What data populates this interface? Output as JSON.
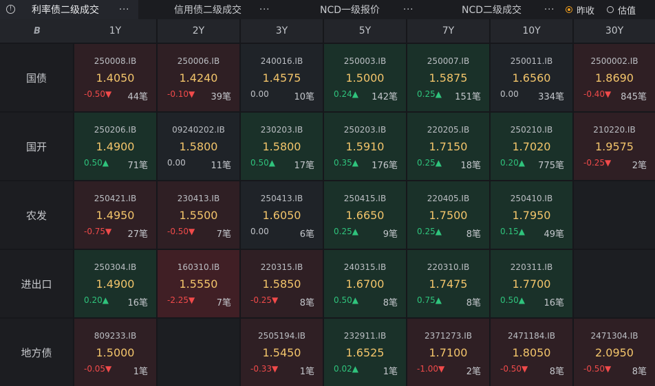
{
  "tabs": [
    {
      "label": "利率债二级成交",
      "more": "···"
    },
    {
      "label": "信用债二级成交",
      "more": "···"
    },
    {
      "label": "NCD一级报价",
      "more": "···"
    },
    {
      "label": "NCD二级成交",
      "more": "···"
    }
  ],
  "radios": [
    {
      "label": "昨收",
      "selected": true
    },
    {
      "label": "估值",
      "selected": false
    }
  ],
  "columns": [
    "1Y",
    "2Y",
    "3Y",
    "5Y",
    "7Y",
    "10Y",
    "30Y"
  ],
  "logo_text": "B",
  "rows": [
    {
      "label": "国债",
      "cells": [
        {
          "code": "250008.IB",
          "yield": "1.4050",
          "change": "-0.50▼",
          "count": "44笔",
          "tone": "red",
          "dir": "down"
        },
        {
          "code": "250006.IB",
          "yield": "1.4240",
          "change": "-0.10▼",
          "count": "39笔",
          "tone": "red",
          "dir": "down"
        },
        {
          "code": "240016.IB",
          "yield": "1.4575",
          "change": "0.00",
          "count": "10笔",
          "tone": "neutral",
          "dir": "flat"
        },
        {
          "code": "250003.IB",
          "yield": "1.5000",
          "change": "0.24▲",
          "count": "142笔",
          "tone": "green",
          "dir": "up"
        },
        {
          "code": "250007.IB",
          "yield": "1.5875",
          "change": "0.25▲",
          "count": "151笔",
          "tone": "green",
          "dir": "up"
        },
        {
          "code": "250011.IB",
          "yield": "1.6560",
          "change": "0.00",
          "count": "334笔",
          "tone": "neutral",
          "dir": "flat"
        },
        {
          "code": "2500002.IB",
          "yield": "1.8690",
          "change": "-0.40▼",
          "count": "845笔",
          "tone": "red",
          "dir": "down"
        }
      ]
    },
    {
      "label": "国开",
      "cells": [
        {
          "code": "250206.IB",
          "yield": "1.4900",
          "change": "0.50▲",
          "count": "71笔",
          "tone": "green",
          "dir": "up"
        },
        {
          "code": "09240202.IB",
          "yield": "1.5800",
          "change": "0.00",
          "count": "11笔",
          "tone": "neutral",
          "dir": "flat"
        },
        {
          "code": "230203.IB",
          "yield": "1.5800",
          "change": "0.50▲",
          "count": "17笔",
          "tone": "green",
          "dir": "up"
        },
        {
          "code": "250203.IB",
          "yield": "1.5910",
          "change": "0.35▲",
          "count": "176笔",
          "tone": "green",
          "dir": "up"
        },
        {
          "code": "220205.IB",
          "yield": "1.7150",
          "change": "0.25▲",
          "count": "18笔",
          "tone": "green",
          "dir": "up"
        },
        {
          "code": "250210.IB",
          "yield": "1.7020",
          "change": "0.20▲",
          "count": "775笔",
          "tone": "green",
          "dir": "up"
        },
        {
          "code": "210220.IB",
          "yield": "1.9575",
          "change": "-0.25▼",
          "count": "2笔",
          "tone": "red",
          "dir": "down"
        }
      ]
    },
    {
      "label": "农发",
      "cells": [
        {
          "code": "250421.IB",
          "yield": "1.4950",
          "change": "-0.75▼",
          "count": "27笔",
          "tone": "red",
          "dir": "down"
        },
        {
          "code": "230413.IB",
          "yield": "1.5500",
          "change": "-0.50▼",
          "count": "7笔",
          "tone": "red",
          "dir": "down"
        },
        {
          "code": "250413.IB",
          "yield": "1.6050",
          "change": "0.00",
          "count": "6笔",
          "tone": "neutral",
          "dir": "flat"
        },
        {
          "code": "250415.IB",
          "yield": "1.6650",
          "change": "0.25▲",
          "count": "9笔",
          "tone": "green",
          "dir": "up"
        },
        {
          "code": "220405.IB",
          "yield": "1.7500",
          "change": "0.25▲",
          "count": "8笔",
          "tone": "green",
          "dir": "up"
        },
        {
          "code": "250410.IB",
          "yield": "1.7950",
          "change": "0.15▲",
          "count": "49笔",
          "tone": "green",
          "dir": "up"
        },
        null
      ]
    },
    {
      "label": "进出口",
      "cells": [
        {
          "code": "250304.IB",
          "yield": "1.4900",
          "change": "0.20▲",
          "count": "16笔",
          "tone": "green",
          "dir": "up"
        },
        {
          "code": "160310.IB",
          "yield": "1.5550",
          "change": "-2.25▼",
          "count": "7笔",
          "tone": "red2",
          "dir": "down"
        },
        {
          "code": "220315.IB",
          "yield": "1.5850",
          "change": "-0.25▼",
          "count": "8笔",
          "tone": "red",
          "dir": "down"
        },
        {
          "code": "240315.IB",
          "yield": "1.6700",
          "change": "0.50▲",
          "count": "8笔",
          "tone": "green",
          "dir": "up"
        },
        {
          "code": "220310.IB",
          "yield": "1.7475",
          "change": "0.75▲",
          "count": "8笔",
          "tone": "green",
          "dir": "up"
        },
        {
          "code": "220311.IB",
          "yield": "1.7700",
          "change": "0.50▲",
          "count": "16笔",
          "tone": "green",
          "dir": "up"
        },
        null
      ]
    },
    {
      "label": "地方债",
      "cells": [
        {
          "code": "809233.IB",
          "yield": "1.5000",
          "change": "-0.05▼",
          "count": "1笔",
          "tone": "red",
          "dir": "down"
        },
        null,
        {
          "code": "2505194.IB",
          "yield": "1.5450",
          "change": "-0.33▼",
          "count": "1笔",
          "tone": "red",
          "dir": "down"
        },
        {
          "code": "232911.IB",
          "yield": "1.6525",
          "change": "0.02▲",
          "count": "1笔",
          "tone": "green",
          "dir": "up"
        },
        {
          "code": "2371273.IB",
          "yield": "1.7100",
          "change": "-1.00▼",
          "count": "2笔",
          "tone": "red",
          "dir": "down"
        },
        {
          "code": "2471184.IB",
          "yield": "1.8050",
          "change": "-0.50▼",
          "count": "8笔",
          "tone": "red",
          "dir": "down"
        },
        {
          "code": "2471304.IB",
          "yield": "2.0950",
          "change": "-0.50▼",
          "count": "8笔",
          "tone": "red",
          "dir": "down"
        }
      ]
    }
  ],
  "colors": {
    "yield": "#f3c56b",
    "up": "#2fc37c",
    "down": "#f04a4a",
    "radio_selected": "#f0a020"
  }
}
